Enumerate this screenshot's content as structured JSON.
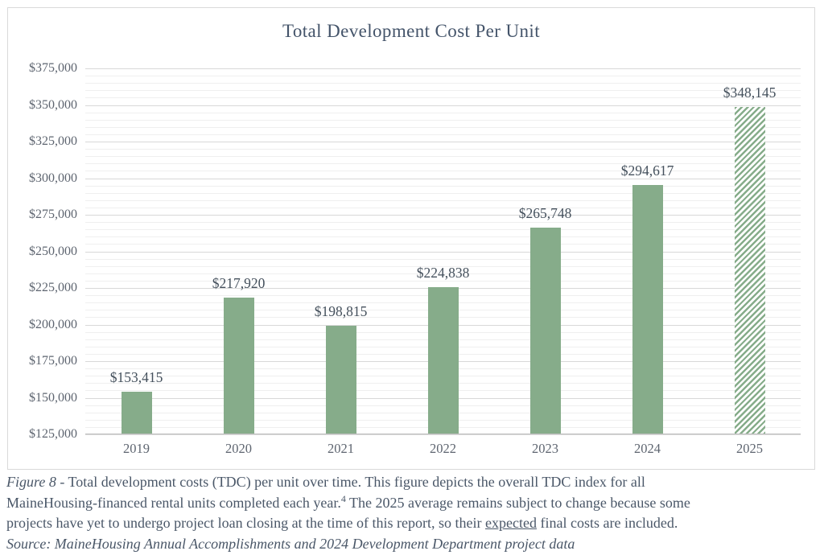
{
  "chart": {
    "colors": {
      "bar_fill": "#86AC8A",
      "frame_border": "#D9D9D9",
      "grid_major": "#D8D8D8",
      "grid_minor": "#EFEFEF",
      "axis_line": "#BFBFBF",
      "title_text": "#44546A",
      "axis_text": "#5E6570",
      "data_label_text": "#44505C",
      "caption_text": "#4A5768",
      "background": "#FFFFFF"
    }
  },
  "chart_data": {
    "type": "bar",
    "title": "Total Development Cost Per Unit",
    "categories": [
      "2019",
      "2020",
      "2021",
      "2022",
      "2023",
      "2024",
      "2025"
    ],
    "values": [
      153415,
      217920,
      198815,
      224838,
      265748,
      294617,
      348145
    ],
    "data_labels": [
      "$153,415",
      "$217,920",
      "$198,815",
      "$224,838",
      "$265,748",
      "$294,617",
      "$348,145"
    ],
    "projected_categories": [
      "2025"
    ],
    "projected_style": "diagonal-hatch",
    "xlabel": "",
    "ylabel": "",
    "ylim": [
      125000,
      375000
    ],
    "y_major_step": 25000,
    "y_minor_step": 5000,
    "y_tick_labels": [
      "$125,000",
      "$150,000",
      "$175,000",
      "$200,000",
      "$225,000",
      "$250,000",
      "$275,000",
      "$300,000",
      "$325,000",
      "$350,000",
      "$375,000"
    ],
    "grid": "horizontal major and minor gridlines",
    "legend": "none"
  },
  "caption": {
    "lines": [
      {
        "segments": [
          {
            "text": "Figure 8",
            "style": "italic"
          },
          {
            "text": " - Total development costs (TDC) per unit over time. This figure depicts the overall TDC index for all",
            "style": "normal"
          }
        ]
      },
      {
        "segments": [
          {
            "text": "MaineHousing-financed rental units completed each year.",
            "style": "normal"
          },
          {
            "text": "4",
            "style": "sup"
          },
          {
            "text": " The 2025 average remains subject to change because some",
            "style": "normal"
          }
        ]
      },
      {
        "segments": [
          {
            "text": "projects have yet to undergo project loan closing at the time of this report, so their ",
            "style": "normal"
          },
          {
            "text": "expected",
            "style": "underline"
          },
          {
            "text": " final costs are included.",
            "style": "normal"
          }
        ]
      },
      {
        "segments": [
          {
            "text": "Source: MaineHousing Annual Accomplishments and 2024 Development Department project data",
            "style": "italic"
          }
        ]
      }
    ]
  }
}
